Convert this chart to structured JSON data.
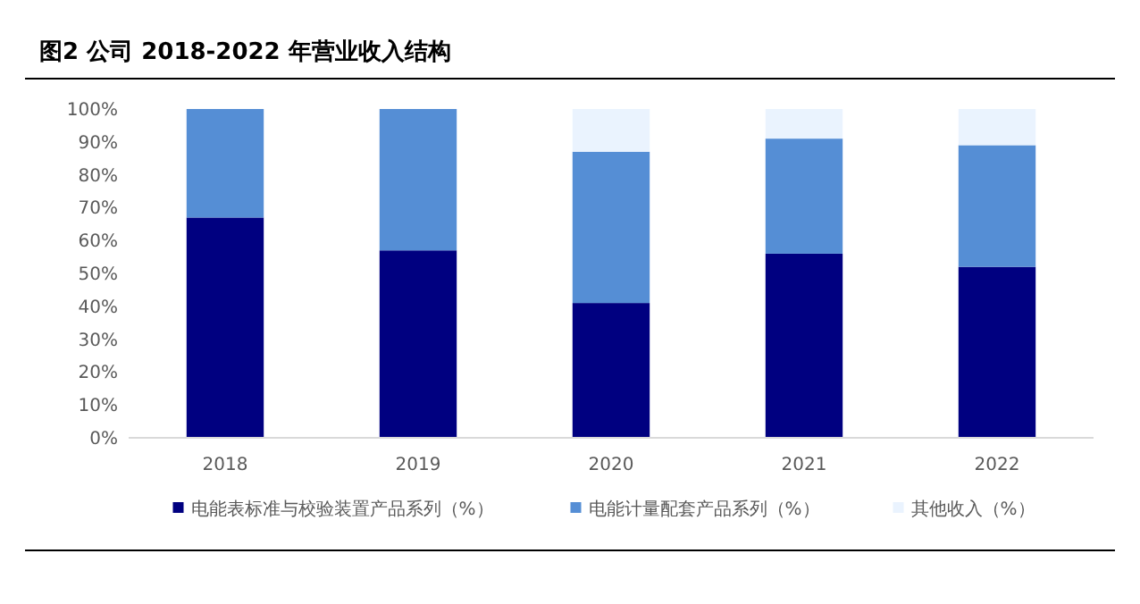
{
  "chart_data": {
    "type": "bar",
    "stacked": true,
    "title": "图2   公司 2018-2022 年营业收入结构",
    "categories": [
      "2018",
      "2019",
      "2020",
      "2021",
      "2022"
    ],
    "series": [
      {
        "name": "电能表标准与校验装置产品系列（%）",
        "color": "#000080",
        "values": [
          67,
          57,
          41,
          56,
          52
        ]
      },
      {
        "name": "电能计量配套产品系列（%）",
        "color": "#558ed5",
        "values": [
          33,
          43,
          46,
          35,
          37
        ]
      },
      {
        "name": "其他收入（%）",
        "color": "#eaf3fe",
        "values": [
          0,
          0,
          13,
          9,
          11
        ]
      }
    ],
    "ylim": [
      0,
      100
    ],
    "yticks": [
      {
        "value": 0,
        "label": "0%"
      },
      {
        "value": 10,
        "label": "10%"
      },
      {
        "value": 20,
        "label": "20%"
      },
      {
        "value": 30,
        "label": "30%"
      },
      {
        "value": 40,
        "label": "40%"
      },
      {
        "value": 50,
        "label": "50%"
      },
      {
        "value": 60,
        "label": "60%"
      },
      {
        "value": 70,
        "label": "70%"
      },
      {
        "value": 80,
        "label": "80%"
      },
      {
        "value": 90,
        "label": "90%"
      },
      {
        "value": 100,
        "label": "100%"
      }
    ],
    "grid": false,
    "legend": "bottom"
  }
}
